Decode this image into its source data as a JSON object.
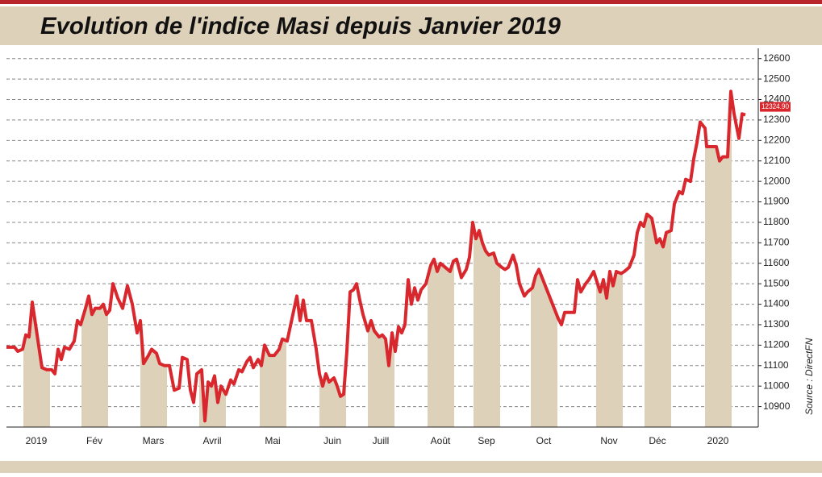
{
  "chart_data": {
    "type": "line",
    "title": "Evolution de l'indice Masi depuis Janvier 2019",
    "source": "Source : DirectFN",
    "last_label": "12324.90",
    "color": "#d9272e",
    "shade_color": "#ddd1b9",
    "grid": true,
    "xlim": [
      8,
      935
    ],
    "ylim": [
      10800,
      12650
    ],
    "yticks": [
      10900,
      11000,
      11100,
      11200,
      11300,
      11400,
      11500,
      11600,
      11700,
      11800,
      11900,
      12000,
      12100,
      12200,
      12300,
      12400,
      12500,
      12600
    ],
    "xticks": [
      {
        "value": 45,
        "label": "2019"
      },
      {
        "value": 117,
        "label": "Fév"
      },
      {
        "value": 190,
        "label": "Mars"
      },
      {
        "value": 263,
        "label": "Avril"
      },
      {
        "value": 338,
        "label": "Mai"
      },
      {
        "value": 412,
        "label": "Juin"
      },
      {
        "value": 472,
        "label": "Juill"
      },
      {
        "value": 546,
        "label": "Août"
      },
      {
        "value": 603,
        "label": "Sep"
      },
      {
        "value": 674,
        "label": "Oct"
      },
      {
        "value": 755,
        "label": "Nov"
      },
      {
        "value": 815,
        "label": "Déc"
      },
      {
        "value": 890,
        "label": "2020"
      }
    ],
    "x": [
      8,
      18,
      22,
      28,
      32,
      36,
      40,
      46,
      52,
      58,
      64,
      68,
      72,
      76,
      80,
      86,
      92,
      96,
      100,
      106,
      110,
      114,
      118,
      124,
      128,
      132,
      136,
      140,
      146,
      152,
      158,
      164,
      170,
      174,
      178,
      184,
      188,
      194,
      198,
      204,
      210,
      216,
      222,
      226,
      232,
      236,
      240,
      244,
      250,
      254,
      258,
      262,
      266,
      270,
      274,
      280,
      286,
      290,
      296,
      300,
      306,
      310,
      314,
      320,
      324,
      328,
      334,
      340,
      346,
      350,
      356,
      362,
      368,
      372,
      376,
      380,
      386,
      392,
      396,
      400,
      404,
      408,
      414,
      418,
      422,
      426,
      430,
      434,
      438,
      442,
      446,
      450,
      456,
      460,
      464,
      470,
      474,
      478,
      482,
      486,
      490,
      494,
      498,
      502,
      506,
      510,
      514,
      518,
      522,
      528,
      534,
      538,
      542,
      546,
      552,
      558,
      562,
      566,
      572,
      578,
      582,
      586,
      590,
      594,
      598,
      602,
      606,
      612,
      616,
      622,
      626,
      630,
      636,
      640,
      644,
      650,
      654,
      660,
      664,
      668,
      674,
      680,
      686,
      692,
      696,
      700,
      708,
      712,
      716,
      720,
      726,
      730,
      736,
      740,
      744,
      748,
      752,
      756,
      760,
      764,
      770,
      774,
      780,
      786,
      790,
      794,
      798,
      802,
      808,
      814,
      818,
      822,
      826,
      832,
      836,
      842,
      846,
      850,
      856,
      860,
      864,
      868,
      874,
      876,
      882,
      888,
      892,
      896,
      902,
      906,
      910,
      916,
      920,
      924
    ],
    "values": [
      11190,
      11190,
      11170,
      11180,
      11250,
      11240,
      11410,
      11250,
      11090,
      11080,
      11080,
      11060,
      11180,
      11130,
      11190,
      11180,
      11220,
      11320,
      11300,
      11380,
      11440,
      11350,
      11380,
      11380,
      11400,
      11350,
      11370,
      11500,
      11430,
      11380,
      11490,
      11400,
      11260,
      11320,
      11110,
      11150,
      11180,
      11160,
      11110,
      11100,
      11100,
      10980,
      10990,
      11140,
      11130,
      10980,
      10920,
      11060,
      11080,
      10830,
      11020,
      11000,
      11050,
      10920,
      11000,
      10960,
      11030,
      11010,
      11080,
      11070,
      11120,
      11140,
      11090,
      11130,
      11100,
      11200,
      11150,
      11150,
      11180,
      11230,
      11220,
      11330,
      11440,
      11320,
      11420,
      11320,
      11320,
      11180,
      11060,
      11000,
      11060,
      11020,
      11040,
      11000,
      10950,
      10960,
      11170,
      11460,
      11470,
      11500,
      11420,
      11350,
      11270,
      11320,
      11270,
      11240,
      11250,
      11230,
      11100,
      11260,
      11170,
      11290,
      11260,
      11300,
      11520,
      11400,
      11480,
      11420,
      11470,
      11500,
      11590,
      11620,
      11560,
      11600,
      11580,
      11560,
      11610,
      11620,
      11530,
      11570,
      11630,
      11800,
      11720,
      11760,
      11700,
      11660,
      11640,
      11650,
      11600,
      11580,
      11570,
      11580,
      11640,
      11590,
      11500,
      11440,
      11460,
      11480,
      11540,
      11570,
      11510,
      11450,
      11390,
      11330,
      11300,
      11360,
      11360,
      11360,
      11520,
      11460,
      11500,
      11520,
      11560,
      11510,
      11460,
      11520,
      11430,
      11560,
      11490,
      11560,
      11550,
      11560,
      11580,
      11640,
      11750,
      11800,
      11780,
      11840,
      11820,
      11700,
      11720,
      11680,
      11750,
      11760,
      11890,
      11950,
      11940,
      12010,
      12000,
      12110,
      12190,
      12290,
      12260,
      12170,
      12170,
      12170,
      12100,
      12120,
      12120,
      12440,
      12330,
      12210,
      12330,
      12324.9
    ]
  }
}
